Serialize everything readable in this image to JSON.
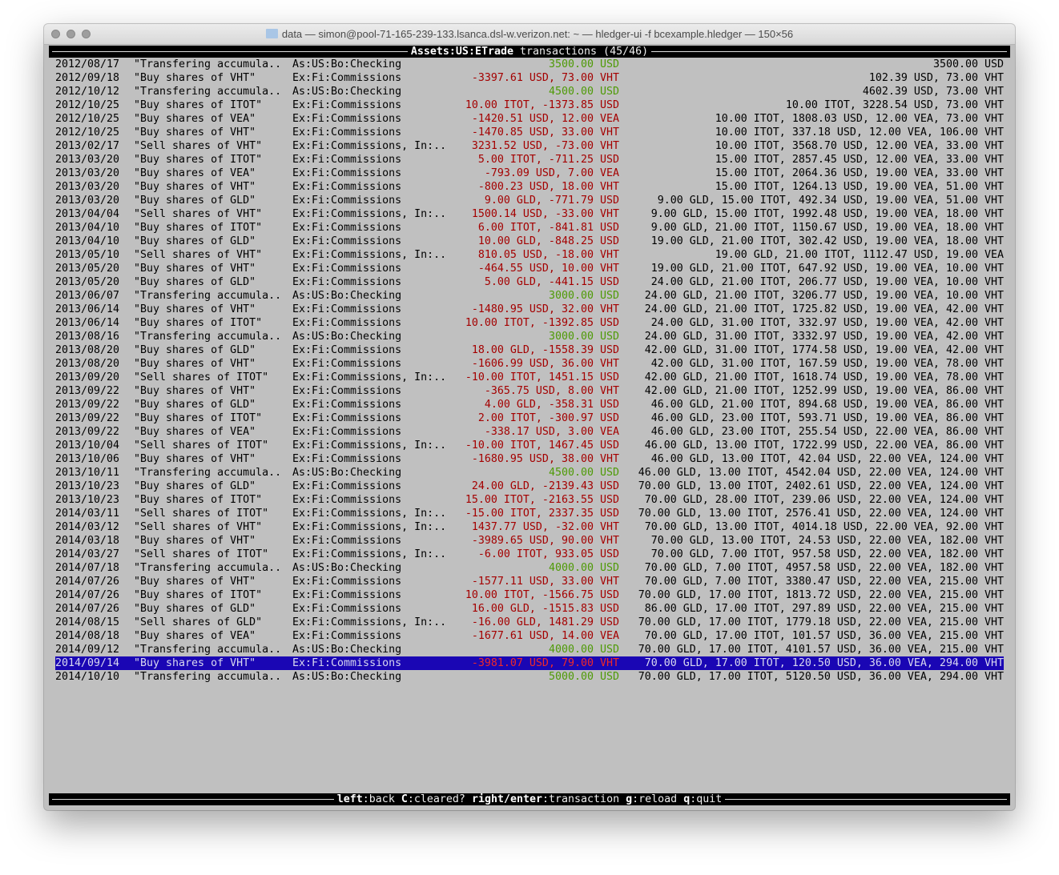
{
  "window": {
    "title": "data — simon@pool-71-165-239-133.lsanca.dsl-w.verizon.net: ~ — hledger-ui -f bcexample.hledger — 150×56"
  },
  "header": {
    "account": "Assets:US:ETrade",
    "suffix": " transactions (45/46)"
  },
  "colors": {
    "negative": "#a40000",
    "positive": "#4e9a06",
    "selection": "#1a06b4",
    "background": "#c0c0c0"
  },
  "selected_index": 44,
  "rows": [
    [
      "2012/08/17",
      "\"Transfering accumula..",
      "As:US:Bo:Checking",
      "3500.00 USD",
      "3500.00 USD"
    ],
    [
      "2012/09/18",
      "\"Buy shares of VHT\"",
      "Ex:Fi:Commissions",
      "-3397.61 USD, 73.00 VHT",
      "102.39 USD, 73.00 VHT"
    ],
    [
      "2012/10/12",
      "\"Transfering accumula..",
      "As:US:Bo:Checking",
      "4500.00 USD",
      "4602.39 USD, 73.00 VHT"
    ],
    [
      "2012/10/25",
      "\"Buy shares of ITOT\"",
      "Ex:Fi:Commissions",
      "10.00 ITOT, -1373.85 USD",
      "10.00 ITOT, 3228.54 USD, 73.00 VHT"
    ],
    [
      "2012/10/25",
      "\"Buy shares of VEA\"",
      "Ex:Fi:Commissions",
      "-1420.51 USD, 12.00 VEA",
      "10.00 ITOT, 1808.03 USD, 12.00 VEA, 73.00 VHT"
    ],
    [
      "2012/10/25",
      "\"Buy shares of VHT\"",
      "Ex:Fi:Commissions",
      "-1470.85 USD, 33.00 VHT",
      "10.00 ITOT, 337.18 USD, 12.00 VEA, 106.00 VHT"
    ],
    [
      "2013/02/17",
      "\"Sell shares of VHT\"",
      "Ex:Fi:Commissions, In:..",
      "3231.52 USD, -73.00 VHT",
      "10.00 ITOT, 3568.70 USD, 12.00 VEA, 33.00 VHT"
    ],
    [
      "2013/03/20",
      "\"Buy shares of ITOT\"",
      "Ex:Fi:Commissions",
      "5.00 ITOT, -711.25 USD",
      "15.00 ITOT, 2857.45 USD, 12.00 VEA, 33.00 VHT"
    ],
    [
      "2013/03/20",
      "\"Buy shares of VEA\"",
      "Ex:Fi:Commissions",
      "-793.09 USD, 7.00 VEA",
      "15.00 ITOT, 2064.36 USD, 19.00 VEA, 33.00 VHT"
    ],
    [
      "2013/03/20",
      "\"Buy shares of VHT\"",
      "Ex:Fi:Commissions",
      "-800.23 USD, 18.00 VHT",
      "15.00 ITOT, 1264.13 USD, 19.00 VEA, 51.00 VHT"
    ],
    [
      "2013/03/20",
      "\"Buy shares of GLD\"",
      "Ex:Fi:Commissions",
      "9.00 GLD, -771.79 USD",
      "9.00 GLD, 15.00 ITOT, 492.34 USD, 19.00 VEA, 51.00 VHT"
    ],
    [
      "2013/04/04",
      "\"Sell shares of VHT\"",
      "Ex:Fi:Commissions, In:..",
      "1500.14 USD, -33.00 VHT",
      "9.00 GLD, 15.00 ITOT, 1992.48 USD, 19.00 VEA, 18.00 VHT"
    ],
    [
      "2013/04/10",
      "\"Buy shares of ITOT\"",
      "Ex:Fi:Commissions",
      "6.00 ITOT, -841.81 USD",
      "9.00 GLD, 21.00 ITOT, 1150.67 USD, 19.00 VEA, 18.00 VHT"
    ],
    [
      "2013/04/10",
      "\"Buy shares of GLD\"",
      "Ex:Fi:Commissions",
      "10.00 GLD, -848.25 USD",
      "19.00 GLD, 21.00 ITOT, 302.42 USD, 19.00 VEA, 18.00 VHT"
    ],
    [
      "2013/05/10",
      "\"Sell shares of VHT\"",
      "Ex:Fi:Commissions, In:..",
      "810.05 USD, -18.00 VHT",
      "19.00 GLD, 21.00 ITOT, 1112.47 USD, 19.00 VEA"
    ],
    [
      "2013/05/20",
      "\"Buy shares of VHT\"",
      "Ex:Fi:Commissions",
      "-464.55 USD, 10.00 VHT",
      "19.00 GLD, 21.00 ITOT, 647.92 USD, 19.00 VEA, 10.00 VHT"
    ],
    [
      "2013/05/20",
      "\"Buy shares of GLD\"",
      "Ex:Fi:Commissions",
      "5.00 GLD, -441.15 USD",
      "24.00 GLD, 21.00 ITOT, 206.77 USD, 19.00 VEA, 10.00 VHT"
    ],
    [
      "2013/06/07",
      "\"Transfering accumula..",
      "As:US:Bo:Checking",
      "3000.00 USD",
      "24.00 GLD, 21.00 ITOT, 3206.77 USD, 19.00 VEA, 10.00 VHT"
    ],
    [
      "2013/06/14",
      "\"Buy shares of VHT\"",
      "Ex:Fi:Commissions",
      "-1480.95 USD, 32.00 VHT",
      "24.00 GLD, 21.00 ITOT, 1725.82 USD, 19.00 VEA, 42.00 VHT"
    ],
    [
      "2013/06/14",
      "\"Buy shares of ITOT\"",
      "Ex:Fi:Commissions",
      "10.00 ITOT, -1392.85 USD",
      "24.00 GLD, 31.00 ITOT, 332.97 USD, 19.00 VEA, 42.00 VHT"
    ],
    [
      "2013/08/16",
      "\"Transfering accumula..",
      "As:US:Bo:Checking",
      "3000.00 USD",
      "24.00 GLD, 31.00 ITOT, 3332.97 USD, 19.00 VEA, 42.00 VHT"
    ],
    [
      "2013/08/20",
      "\"Buy shares of GLD\"",
      "Ex:Fi:Commissions",
      "18.00 GLD, -1558.39 USD",
      "42.00 GLD, 31.00 ITOT, 1774.58 USD, 19.00 VEA, 42.00 VHT"
    ],
    [
      "2013/08/20",
      "\"Buy shares of VHT\"",
      "Ex:Fi:Commissions",
      "-1606.99 USD, 36.00 VHT",
      "42.00 GLD, 31.00 ITOT, 167.59 USD, 19.00 VEA, 78.00 VHT"
    ],
    [
      "2013/09/20",
      "\"Sell shares of ITOT\"",
      "Ex:Fi:Commissions, In:..",
      "-10.00 ITOT, 1451.15 USD",
      "42.00 GLD, 21.00 ITOT, 1618.74 USD, 19.00 VEA, 78.00 VHT"
    ],
    [
      "2013/09/22",
      "\"Buy shares of VHT\"",
      "Ex:Fi:Commissions",
      "-365.75 USD, 8.00 VHT",
      "42.00 GLD, 21.00 ITOT, 1252.99 USD, 19.00 VEA, 86.00 VHT"
    ],
    [
      "2013/09/22",
      "\"Buy shares of GLD\"",
      "Ex:Fi:Commissions",
      "4.00 GLD, -358.31 USD",
      "46.00 GLD, 21.00 ITOT, 894.68 USD, 19.00 VEA, 86.00 VHT"
    ],
    [
      "2013/09/22",
      "\"Buy shares of ITOT\"",
      "Ex:Fi:Commissions",
      "2.00 ITOT, -300.97 USD",
      "46.00 GLD, 23.00 ITOT, 593.71 USD, 19.00 VEA, 86.00 VHT"
    ],
    [
      "2013/09/22",
      "\"Buy shares of VEA\"",
      "Ex:Fi:Commissions",
      "-338.17 USD, 3.00 VEA",
      "46.00 GLD, 23.00 ITOT, 255.54 USD, 22.00 VEA, 86.00 VHT"
    ],
    [
      "2013/10/04",
      "\"Sell shares of ITOT\"",
      "Ex:Fi:Commissions, In:..",
      "-10.00 ITOT, 1467.45 USD",
      "46.00 GLD, 13.00 ITOT, 1722.99 USD, 22.00 VEA, 86.00 VHT"
    ],
    [
      "2013/10/06",
      "\"Buy shares of VHT\"",
      "Ex:Fi:Commissions",
      "-1680.95 USD, 38.00 VHT",
      "46.00 GLD, 13.00 ITOT, 42.04 USD, 22.00 VEA, 124.00 VHT"
    ],
    [
      "2013/10/11",
      "\"Transfering accumula..",
      "As:US:Bo:Checking",
      "4500.00 USD",
      "46.00 GLD, 13.00 ITOT, 4542.04 USD, 22.00 VEA, 124.00 VHT"
    ],
    [
      "2013/10/23",
      "\"Buy shares of GLD\"",
      "Ex:Fi:Commissions",
      "24.00 GLD, -2139.43 USD",
      "70.00 GLD, 13.00 ITOT, 2402.61 USD, 22.00 VEA, 124.00 VHT"
    ],
    [
      "2013/10/23",
      "\"Buy shares of ITOT\"",
      "Ex:Fi:Commissions",
      "15.00 ITOT, -2163.55 USD",
      "70.00 GLD, 28.00 ITOT, 239.06 USD, 22.00 VEA, 124.00 VHT"
    ],
    [
      "2014/03/11",
      "\"Sell shares of ITOT\"",
      "Ex:Fi:Commissions, In:..",
      "-15.00 ITOT, 2337.35 USD",
      "70.00 GLD, 13.00 ITOT, 2576.41 USD, 22.00 VEA, 124.00 VHT"
    ],
    [
      "2014/03/12",
      "\"Sell shares of VHT\"",
      "Ex:Fi:Commissions, In:..",
      "1437.77 USD, -32.00 VHT",
      "70.00 GLD, 13.00 ITOT, 4014.18 USD, 22.00 VEA, 92.00 VHT"
    ],
    [
      "2014/03/18",
      "\"Buy shares of VHT\"",
      "Ex:Fi:Commissions",
      "-3989.65 USD, 90.00 VHT",
      "70.00 GLD, 13.00 ITOT, 24.53 USD, 22.00 VEA, 182.00 VHT"
    ],
    [
      "2014/03/27",
      "\"Sell shares of ITOT\"",
      "Ex:Fi:Commissions, In:..",
      "-6.00 ITOT, 933.05 USD",
      "70.00 GLD, 7.00 ITOT, 957.58 USD, 22.00 VEA, 182.00 VHT"
    ],
    [
      "2014/07/18",
      "\"Transfering accumula..",
      "As:US:Bo:Checking",
      "4000.00 USD",
      "70.00 GLD, 7.00 ITOT, 4957.58 USD, 22.00 VEA, 182.00 VHT"
    ],
    [
      "2014/07/26",
      "\"Buy shares of VHT\"",
      "Ex:Fi:Commissions",
      "-1577.11 USD, 33.00 VHT",
      "70.00 GLD, 7.00 ITOT, 3380.47 USD, 22.00 VEA, 215.00 VHT"
    ],
    [
      "2014/07/26",
      "\"Buy shares of ITOT\"",
      "Ex:Fi:Commissions",
      "10.00 ITOT, -1566.75 USD",
      "70.00 GLD, 17.00 ITOT, 1813.72 USD, 22.00 VEA, 215.00 VHT"
    ],
    [
      "2014/07/26",
      "\"Buy shares of GLD\"",
      "Ex:Fi:Commissions",
      "16.00 GLD, -1515.83 USD",
      "86.00 GLD, 17.00 ITOT, 297.89 USD, 22.00 VEA, 215.00 VHT"
    ],
    [
      "2014/08/15",
      "\"Sell shares of GLD\"",
      "Ex:Fi:Commissions, In:..",
      "-16.00 GLD, 1481.29 USD",
      "70.00 GLD, 17.00 ITOT, 1779.18 USD, 22.00 VEA, 215.00 VHT"
    ],
    [
      "2014/08/18",
      "\"Buy shares of VEA\"",
      "Ex:Fi:Commissions",
      "-1677.61 USD, 14.00 VEA",
      "70.00 GLD, 17.00 ITOT, 101.57 USD, 36.00 VEA, 215.00 VHT"
    ],
    [
      "2014/09/12",
      "\"Transfering accumula..",
      "As:US:Bo:Checking",
      "4000.00 USD",
      "70.00 GLD, 17.00 ITOT, 4101.57 USD, 36.00 VEA, 215.00 VHT"
    ],
    [
      "2014/09/14",
      "\"Buy shares of VHT\"",
      "Ex:Fi:Commissions",
      "-3981.07 USD, 79.00 VHT",
      "70.00 GLD, 17.00 ITOT, 120.50 USD, 36.00 VEA, 294.00 VHT"
    ],
    [
      "2014/10/10",
      "\"Transfering accumula..",
      "As:US:Bo:Checking",
      "5000.00 USD",
      "70.00 GLD, 17.00 ITOT, 5120.50 USD, 36.00 VEA, 294.00 VHT"
    ]
  ],
  "footer": {
    "keys": [
      {
        "key": "left",
        "action": "back"
      },
      {
        "key": "C",
        "action": "cleared?"
      },
      {
        "key": "right/enter",
        "action": "transaction"
      },
      {
        "key": "g",
        "action": "reload"
      },
      {
        "key": "q",
        "action": "quit"
      }
    ]
  }
}
